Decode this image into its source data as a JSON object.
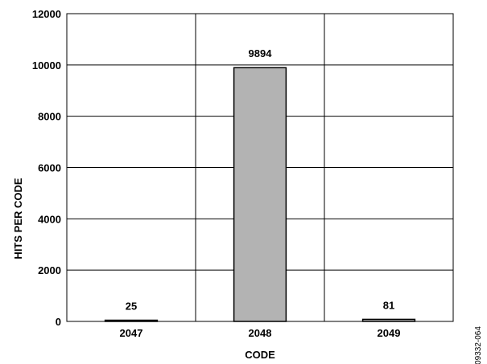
{
  "chart_data": {
    "type": "bar",
    "categories": [
      "2047",
      "2048",
      "2049"
    ],
    "values": [
      25,
      9894,
      81
    ],
    "data_labels": [
      "25",
      "9894",
      "81"
    ],
    "xlabel": "CODE",
    "ylabel": "HITS PER CODE",
    "ylim": [
      0,
      12000
    ],
    "yticks": [
      "0",
      "2000",
      "4000",
      "6000",
      "8000",
      "10000",
      "12000"
    ],
    "grid": true,
    "bar_color": "#b3b3b3",
    "bar_edge_color": "#000000"
  },
  "figure_id": "09332-064"
}
